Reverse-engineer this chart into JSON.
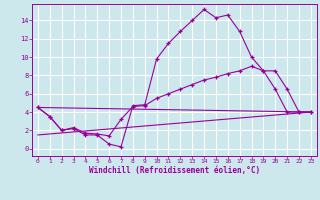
{
  "background_color": "#cce8ec",
  "grid_color": "#ffffff",
  "line_color": "#990099",
  "marker": "+",
  "xlabel": "Windchill (Refroidissement éolien,°C)",
  "xlabel_fontsize": 5.5,
  "xtick_fontsize": 4.5,
  "ytick_fontsize": 5.0,
  "xlim": [
    -0.5,
    23.5
  ],
  "ylim": [
    -0.8,
    15.8
  ],
  "yticks": [
    0,
    2,
    4,
    6,
    8,
    10,
    12,
    14
  ],
  "xticks": [
    0,
    1,
    2,
    3,
    4,
    5,
    6,
    7,
    8,
    9,
    10,
    11,
    12,
    13,
    14,
    15,
    16,
    17,
    18,
    19,
    20,
    21,
    22,
    23
  ],
  "series": [
    {
      "x": [
        0,
        1,
        2,
        3,
        4,
        5,
        6,
        7,
        8,
        9,
        10,
        11,
        12,
        13,
        14,
        15,
        16,
        17,
        18,
        19,
        20,
        21,
        22,
        23
      ],
      "y": [
        4.5,
        3.5,
        2.0,
        2.2,
        1.5,
        1.5,
        0.5,
        0.2,
        4.7,
        4.8,
        9.8,
        11.5,
        12.8,
        14.0,
        15.2,
        14.3,
        14.6,
        12.8,
        10.0,
        8.5,
        6.5,
        4.0,
        4.0,
        4.0
      ],
      "has_marker": true
    },
    {
      "x": [
        0,
        1,
        2,
        3,
        4,
        5,
        6,
        7,
        8,
        9,
        10,
        11,
        12,
        13,
        14,
        15,
        16,
        17,
        18,
        19,
        20,
        21,
        22,
        23
      ],
      "y": [
        4.5,
        3.5,
        2.0,
        2.3,
        1.7,
        1.6,
        1.4,
        3.2,
        4.6,
        4.7,
        5.5,
        6.0,
        6.5,
        7.0,
        7.5,
        7.8,
        8.2,
        8.5,
        9.0,
        8.5,
        8.5,
        6.5,
        4.0,
        4.0
      ],
      "has_marker": true
    },
    {
      "x": [
        0,
        23
      ],
      "y": [
        1.5,
        4.0
      ],
      "has_marker": false
    },
    {
      "x": [
        0,
        23
      ],
      "y": [
        4.5,
        4.0
      ],
      "has_marker": false
    }
  ]
}
